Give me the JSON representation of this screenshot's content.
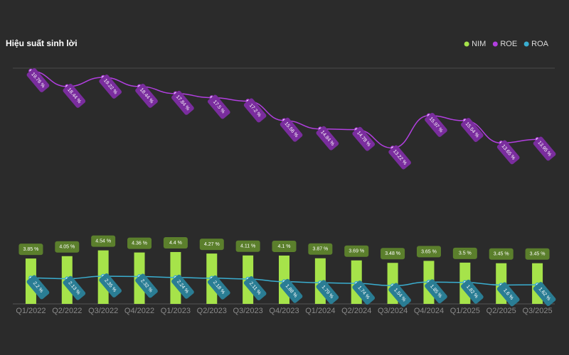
{
  "chart_data": {
    "type": "bar-line",
    "title": "Hiệu suất sinh lời",
    "categories": [
      "Q1/2022",
      "Q2/2022",
      "Q3/2022",
      "Q4/2022",
      "Q1/2023",
      "Q2/2023",
      "Q3/2023",
      "Q4/2023",
      "Q1/2024",
      "Q2/2024",
      "Q3/2024",
      "Q4/2024",
      "Q1/2025",
      "Q2/2025",
      "Q3/2025"
    ],
    "ylim": [
      0,
      20
    ],
    "legend": "top-right",
    "series": [
      {
        "name": "NIM",
        "type": "bar",
        "color": "#a6e34a",
        "label_color": "#5b7f2c",
        "values": [
          3.85,
          4.05,
          4.54,
          4.36,
          4.4,
          4.27,
          4.11,
          4.1,
          3.87,
          3.69,
          3.48,
          3.65,
          3.5,
          3.45,
          3.45
        ],
        "value_labels": [
          "3.85 %",
          "4.05 %",
          "4.54 %",
          "4.36 %",
          "4.4 %",
          "4.27 %",
          "4.11 %",
          "4.1 %",
          "3.87 %",
          "3.69 %",
          "3.48 %",
          "3.65 %",
          "3.5 %",
          "3.45 %",
          "3.45 %"
        ]
      },
      {
        "name": "ROE",
        "type": "line",
        "color": "#b23fe0",
        "label_color": "#7a2d9e",
        "values": [
          19.76,
          18.44,
          19.22,
          18.44,
          17.84,
          17.5,
          17.2,
          15.56,
          14.84,
          14.78,
          13.22,
          15.97,
          15.54,
          13.65,
          13.95
        ],
        "value_labels": [
          "19.76 %",
          "18.44 %",
          "19.22 %",
          "18.44 %",
          "17.84 %",
          "17.5 %",
          "17.2 %",
          "15.56 %",
          "14.84 %",
          "14.78 %",
          "13.22 %",
          "15.97 %",
          "15.54 %",
          "13.65 %",
          "13.95 %"
        ]
      },
      {
        "name": "ROA",
        "type": "line",
        "color": "#3aaed0",
        "label_color": "#2a7d94",
        "values": [
          2.2,
          2.13,
          2.35,
          2.32,
          2.24,
          2.18,
          2.11,
          1.88,
          1.79,
          1.74,
          1.54,
          1.85,
          1.82,
          1.6,
          1.62
        ],
        "value_labels": [
          "2.2 %",
          "2.13 %",
          "2.35 %",
          "2.32 %",
          "2.24 %",
          "2.18 %",
          "2.11 %",
          "1.88 %",
          "1.79 %",
          "1.74 %",
          "1.54 %",
          "1.85 %",
          "1.82 %",
          "1.6 %",
          "1.62 %"
        ]
      }
    ]
  }
}
